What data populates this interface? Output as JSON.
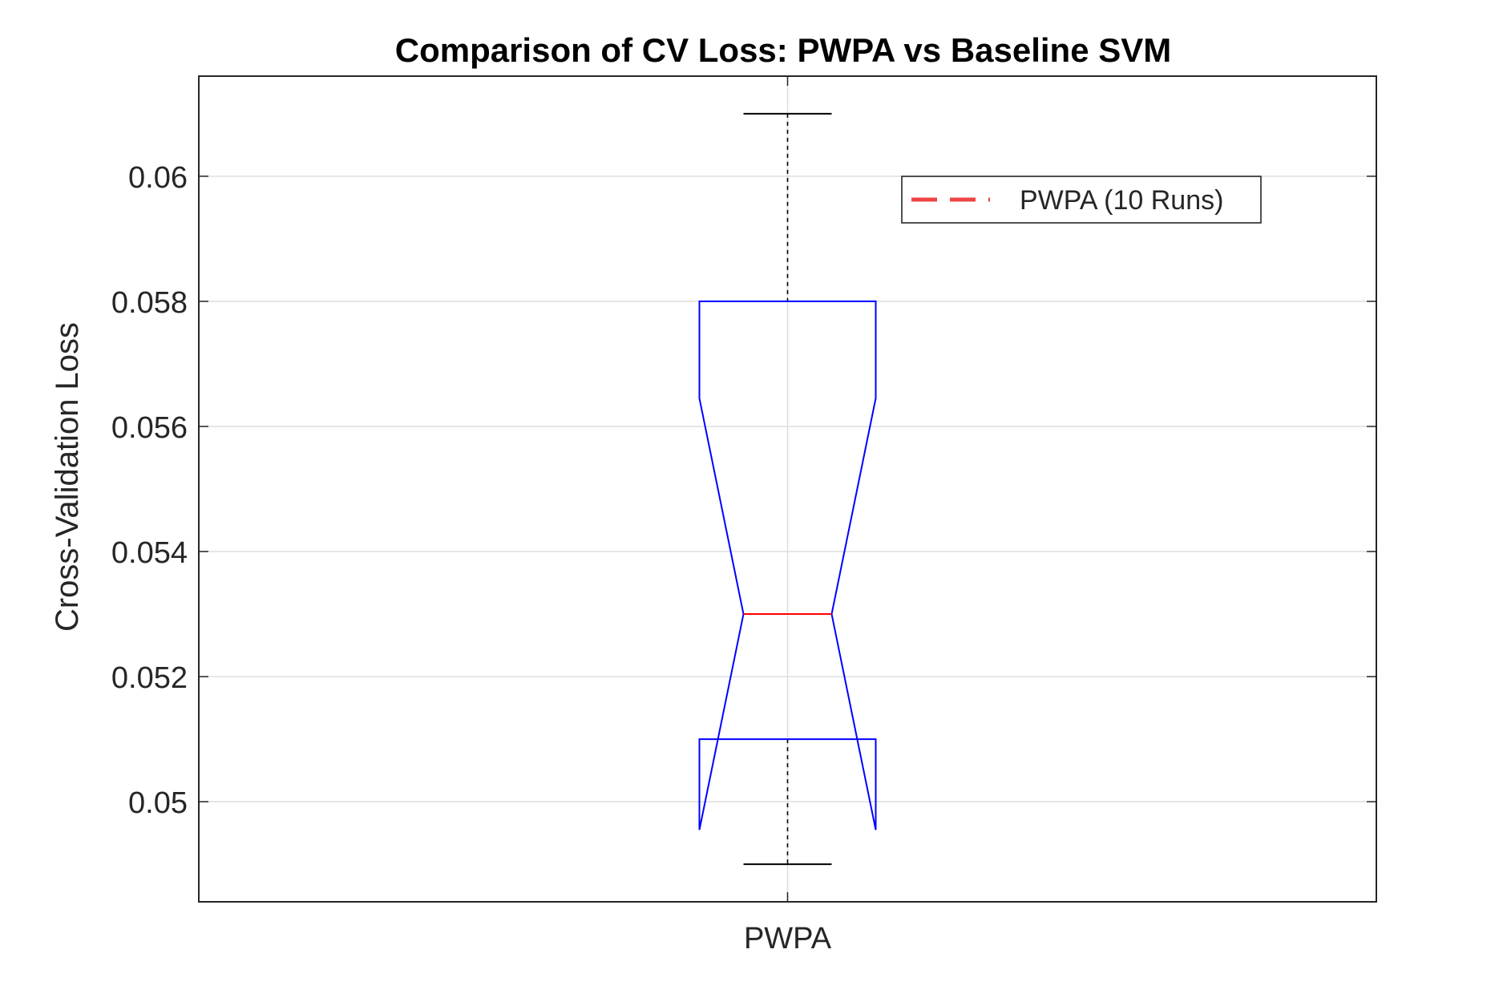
{
  "chart_data": {
    "type": "box",
    "title": "Comparison of CV Loss: PWPA vs Baseline SVM",
    "xlabel": "",
    "ylabel": "Cross-Validation Loss",
    "categories": [
      "PWPA"
    ],
    "ylim": [
      0.0484,
      0.0616
    ],
    "yticks": [
      0.05,
      0.052,
      0.054,
      0.056,
      0.058,
      0.06
    ],
    "ytick_labels": [
      "0.05",
      "0.052",
      "0.054",
      "0.056",
      "0.058",
      "0.06"
    ],
    "grid": true,
    "notched": true,
    "legend": {
      "position": "top-right",
      "entries": [
        {
          "label": "PWPA (10 Runs)",
          "color": "#ee4444",
          "style": "dashed"
        }
      ]
    },
    "boxes": [
      {
        "category": "PWPA",
        "whisker_low": 0.049,
        "q1": 0.051,
        "median": 0.053,
        "q3": 0.058,
        "whisker_high": 0.061,
        "notch_low": 0.04955,
        "notch_high": 0.05645
      }
    ],
    "colors": {
      "box": "#0000ff",
      "median": "#ff0000",
      "whisker": "#000000",
      "grid": "#dedede",
      "axes": "#262626"
    }
  }
}
